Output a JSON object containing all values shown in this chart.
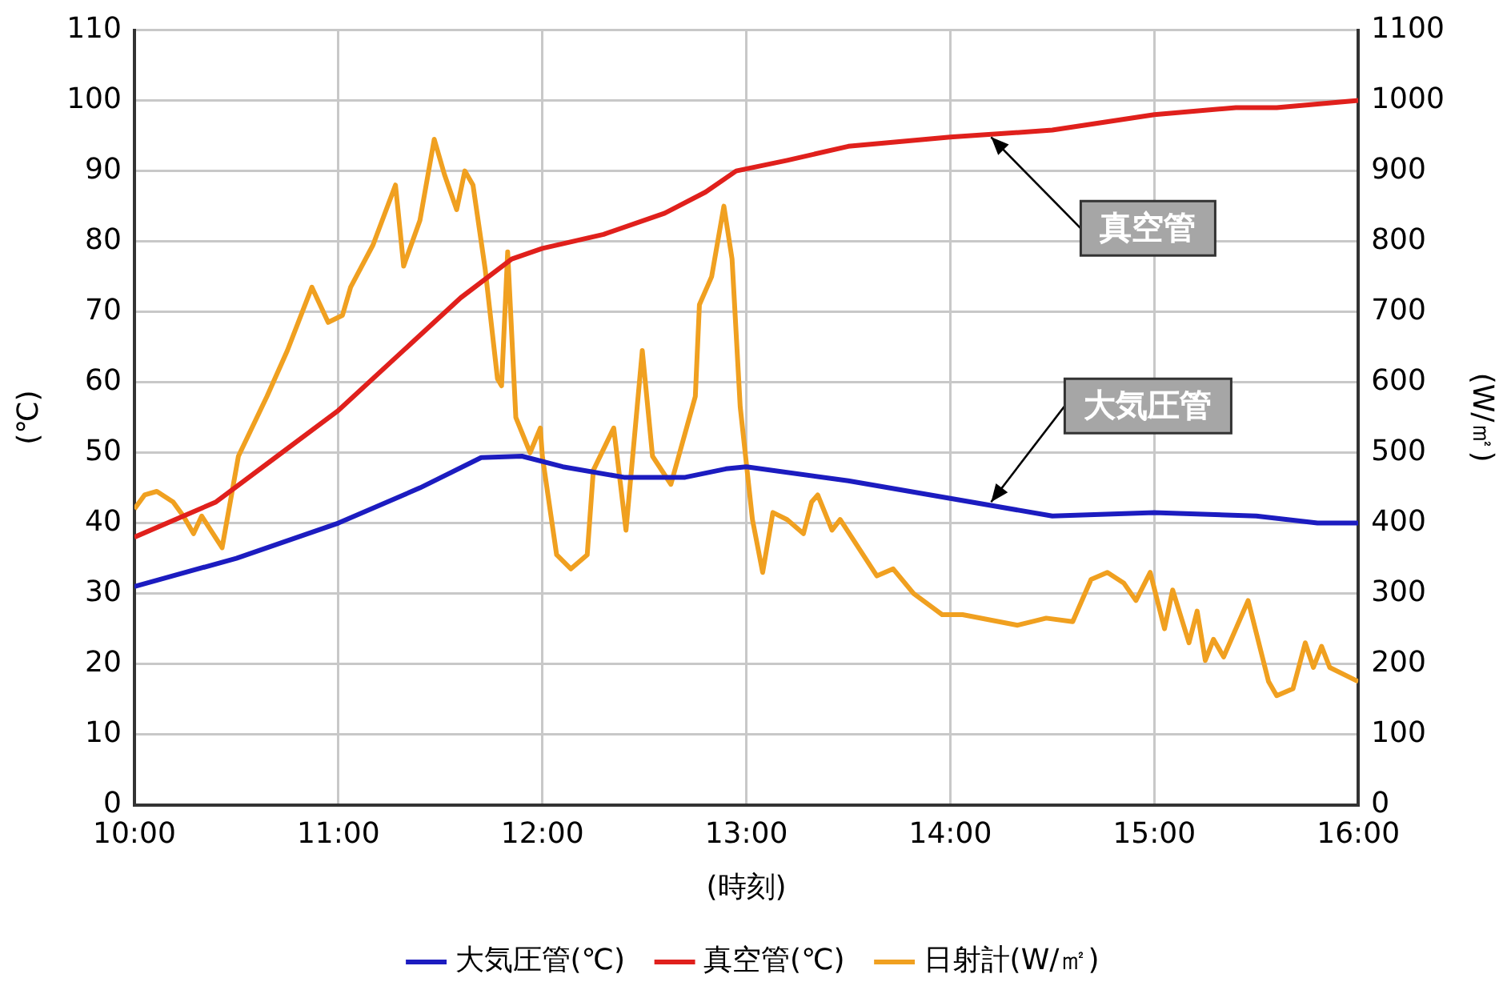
{
  "chart_data": {
    "type": "line",
    "xlabel": "(時刻)",
    "ylabel": "(℃)",
    "y2label": "(W/㎡)",
    "xlim": [
      10,
      16
    ],
    "xticks": [
      {
        "value": 10,
        "label": "10:00"
      },
      {
        "value": 11,
        "label": "11:00"
      },
      {
        "value": 12,
        "label": "12:00"
      },
      {
        "value": 13,
        "label": "13:00"
      },
      {
        "value": 14,
        "label": "14:00"
      },
      {
        "value": 15,
        "label": "15:00"
      },
      {
        "value": 16,
        "label": "16:00"
      }
    ],
    "ylim": [
      0,
      110
    ],
    "yticks": [
      0,
      10,
      20,
      30,
      40,
      50,
      60,
      70,
      80,
      90,
      100,
      110
    ],
    "y2lim": [
      0,
      1100
    ],
    "y2ticks": [
      0,
      100,
      200,
      300,
      400,
      500,
      600,
      700,
      800,
      900,
      1000,
      1100
    ],
    "grid": true,
    "legend": "bottom",
    "marker": "none",
    "line_style": "solid",
    "series": [
      {
        "name": "大気圧管(℃)",
        "color": "#1c1cc0",
        "x": [
          10,
          10.5,
          11,
          11.4,
          11.7,
          11.9,
          12.1,
          12.4,
          12.7,
          12.9,
          13,
          13.5,
          14,
          14.5,
          15,
          15.5,
          15.8,
          16
        ],
        "values": [
          31,
          35,
          40,
          45,
          49.3,
          49.5,
          48,
          46.5,
          46.5,
          47.7,
          48,
          46,
          43.5,
          41,
          41.5,
          41,
          40,
          40
        ]
      },
      {
        "name": "真空管(℃)",
        "color": "#e0201c",
        "x": [
          10,
          10.4,
          10.7,
          11,
          11.3,
          11.6,
          11.85,
          12,
          12.3,
          12.6,
          12.8,
          12.95,
          13.2,
          13.5,
          14,
          14.5,
          15,
          15.4,
          15.6,
          16
        ],
        "values": [
          38,
          43,
          49.5,
          56,
          64,
          72,
          77.5,
          79,
          81,
          84,
          87,
          90,
          91.5,
          93.5,
          94.8,
          95.8,
          98,
          99,
          99,
          100
        ]
      },
      {
        "name": "日射計(W/㎡)",
        "color": "#f0a020",
        "axis": "y2",
        "x": [
          10,
          10.05,
          10.11,
          10.19,
          10.24,
          10.29,
          10.33,
          10.43,
          10.51,
          10.65,
          10.75,
          10.87,
          10.95,
          11.02,
          11.06,
          11.17,
          11.28,
          11.32,
          11.4,
          11.47,
          11.52,
          11.58,
          11.62,
          11.66,
          11.72,
          11.78,
          11.8,
          11.83,
          11.87,
          11.94,
          11.99,
          12,
          12.07,
          12.14,
          12.22,
          12.25,
          12.35,
          12.41,
          12.49,
          12.54,
          12.63,
          12.75,
          12.77,
          12.83,
          12.89,
          12.93,
          12.97,
          13.03,
          13.08,
          13.13,
          13.2,
          13.28,
          13.32,
          13.35,
          13.42,
          13.46,
          13.64,
          13.72,
          13.82,
          13.96,
          14.06,
          14.33,
          14.47,
          14.6,
          14.69,
          14.77,
          14.85,
          14.91,
          14.98,
          15.05,
          15.09,
          15.17,
          15.21,
          15.25,
          15.29,
          15.34,
          15.46,
          15.56,
          15.6,
          15.68,
          15.74,
          15.78,
          15.82,
          15.86,
          16
        ],
        "values": [
          420,
          440,
          445,
          430,
          410,
          385,
          410,
          365,
          495,
          580,
          645,
          735,
          685,
          695,
          735,
          795,
          880,
          765,
          830,
          945,
          895,
          845,
          900,
          880,
          760,
          605,
          595,
          785,
          550,
          500,
          535,
          495,
          355,
          335,
          355,
          475,
          535,
          390,
          645,
          495,
          455,
          580,
          710,
          750,
          850,
          775,
          565,
          405,
          330,
          415,
          405,
          385,
          430,
          440,
          390,
          405,
          325,
          335,
          300,
          270,
          270,
          255,
          265,
          260,
          320,
          330,
          315,
          290,
          330,
          250,
          305,
          230,
          275,
          205,
          235,
          210,
          290,
          175,
          155,
          165,
          230,
          195,
          225,
          195,
          175
        ]
      }
    ],
    "annotations": [
      {
        "text": "真空管",
        "x": 14.2,
        "y": 94.8
      },
      {
        "text": "大気圧管",
        "x": 14.2,
        "y": 43
      }
    ]
  }
}
